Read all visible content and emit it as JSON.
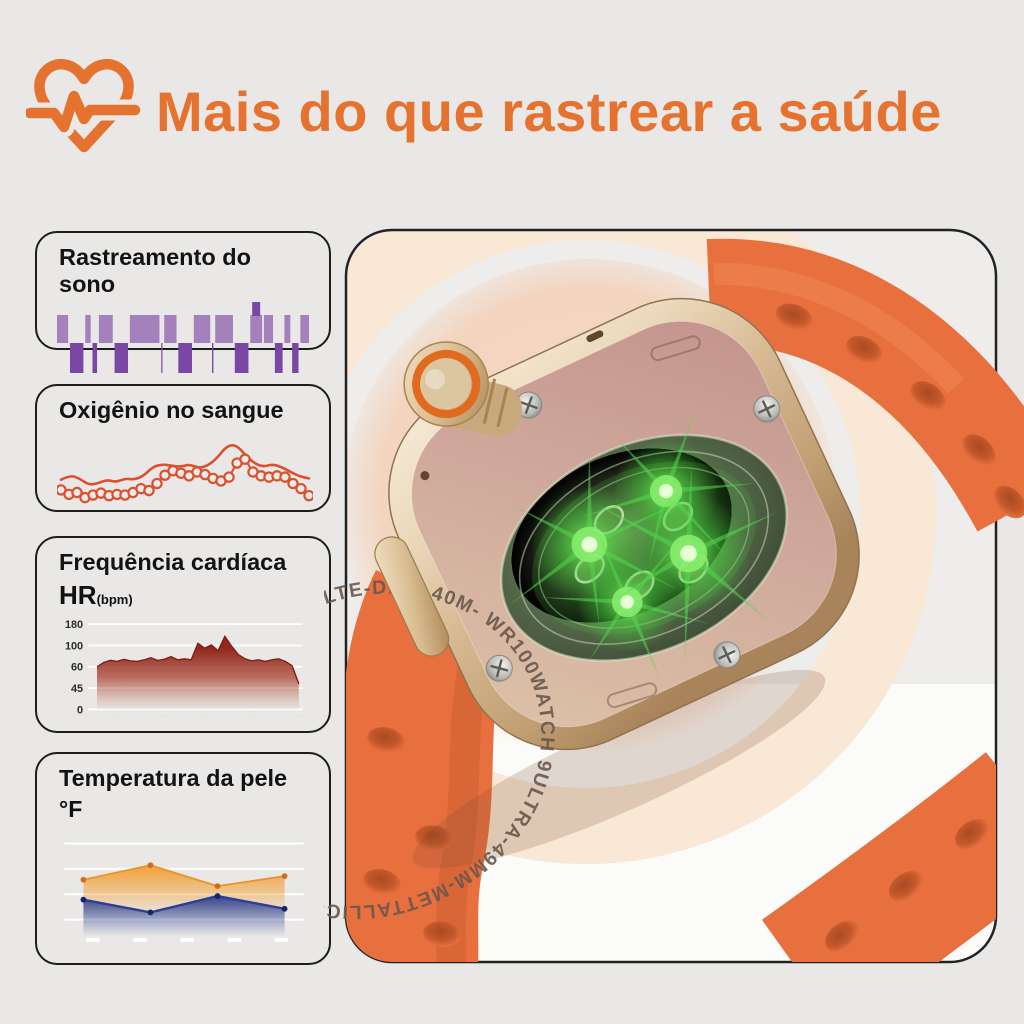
{
  "page": {
    "background_color": "#e9e8e6"
  },
  "header": {
    "title": "Mais do que rastrear a saúde",
    "accent_color": "#e5722f",
    "icon": "heart-ecg-icon"
  },
  "cards": [
    {
      "title": "Rastreamento do sono"
    },
    {
      "title": "Oxigênio no sangue"
    },
    {
      "title": "Frequência cardíaca",
      "metric_label": "HR",
      "metric_unit": "(bpm)"
    },
    {
      "title": "Temperatura da pele",
      "metric_label": "°F"
    }
  ],
  "watch_panel": {
    "engraving_text": "WATCH 9ULTRA-49MM-METTALLIC&PLASTIC CERIMC CASE-XGLASS-GPSLTE-DIVE 40M- WR100-SMART ",
    "band_color": "#e8703e",
    "case_color": "#d9bd92",
    "backglow_color": "#f5d9c5",
    "sensor_glow_color": "#4ad13f"
  },
  "chart_data": [
    {
      "type": "bar",
      "subtype": "sleep-hypnogram",
      "title": "Rastreamento do sono",
      "colors": {
        "light": "#a480bd",
        "deep": "#7a47a4"
      },
      "segments": [
        {
          "stage": "light",
          "w": 4.9
        },
        {
          "stage": "deep",
          "w": 5.9
        },
        {
          "stage": "light",
          "w": 2.4
        },
        {
          "stage": "deep",
          "w": 2.0
        },
        {
          "stage": "light",
          "w": 6.1
        },
        {
          "stage": "deep",
          "w": 5.9
        },
        {
          "stage": "light",
          "w": 13.0
        },
        {
          "stage": "deep",
          "w": 0.5
        },
        {
          "stage": "light",
          "w": 5.4
        },
        {
          "stage": "deep",
          "w": 6.0
        },
        {
          "stage": "light",
          "w": 7.2
        },
        {
          "stage": "deep",
          "w": 0.6
        },
        {
          "stage": "light",
          "w": 7.8
        },
        {
          "stage": "deep",
          "w": 6.0
        },
        {
          "stage": "light",
          "w": 5.2,
          "spike": true
        },
        {
          "stage": "light",
          "w": 4.0
        },
        {
          "stage": "deep",
          "w": 3.4
        },
        {
          "stage": "light",
          "w": 2.6
        },
        {
          "stage": "deep",
          "w": 2.8
        },
        {
          "stage": "light",
          "w": 3.8
        }
      ]
    },
    {
      "type": "line",
      "title": "Oxigênio no sangue",
      "color": "#d9512f",
      "x_range_percent": [
        0,
        100
      ],
      "series": [
        {
          "name": "trend-line",
          "style": "smooth",
          "y_percent": [
            38,
            45,
            40,
            30,
            32,
            38,
            34,
            40,
            38,
            44,
            58,
            62,
            60,
            58,
            62,
            56,
            60,
            72,
            90,
            93,
            78,
            64,
            58,
            62,
            58,
            50,
            43,
            40
          ]
        },
        {
          "name": "spot-readings",
          "style": "line-markers",
          "y_percent": [
            22,
            15,
            18,
            10,
            14,
            17,
            13,
            15,
            14,
            18,
            24,
            21,
            32,
            45,
            52,
            48,
            44,
            50,
            46,
            40,
            36,
            42,
            64,
            70,
            50,
            44,
            42,
            44,
            42,
            32,
            24,
            13
          ]
        }
      ]
    },
    {
      "type": "area",
      "title": "Frequência cardíaca",
      "ylabel": "HR (bpm)",
      "color": "#9c2a1f",
      "y_axis_ticks": [
        180,
        100,
        60,
        45,
        0
      ],
      "values_bpm": [
        60,
        68,
        72,
        70,
        74,
        71,
        70,
        73,
        77,
        72,
        74,
        79,
        73,
        75,
        73,
        108,
        95,
        102,
        90,
        134,
        99,
        83,
        75,
        71,
        73,
        70,
        73,
        75,
        70,
        62,
        48
      ]
    },
    {
      "type": "area",
      "title": "Temperatura da pele",
      "ylabel": "°F",
      "gridlines": 4,
      "series": [
        {
          "name": "series-orange",
          "color": "#f39c2d",
          "dot_color": "#cf6e1a",
          "x_percent": [
            8,
            36,
            64,
            92
          ],
          "y_percent": [
            62,
            78,
            55,
            66
          ]
        },
        {
          "name": "series-blue",
          "color": "#2b3f94",
          "dot_color": "#16246b",
          "x_percent": [
            8,
            36,
            64,
            92
          ],
          "y_percent": [
            40,
            26,
            44,
            30
          ]
        }
      ]
    }
  ]
}
